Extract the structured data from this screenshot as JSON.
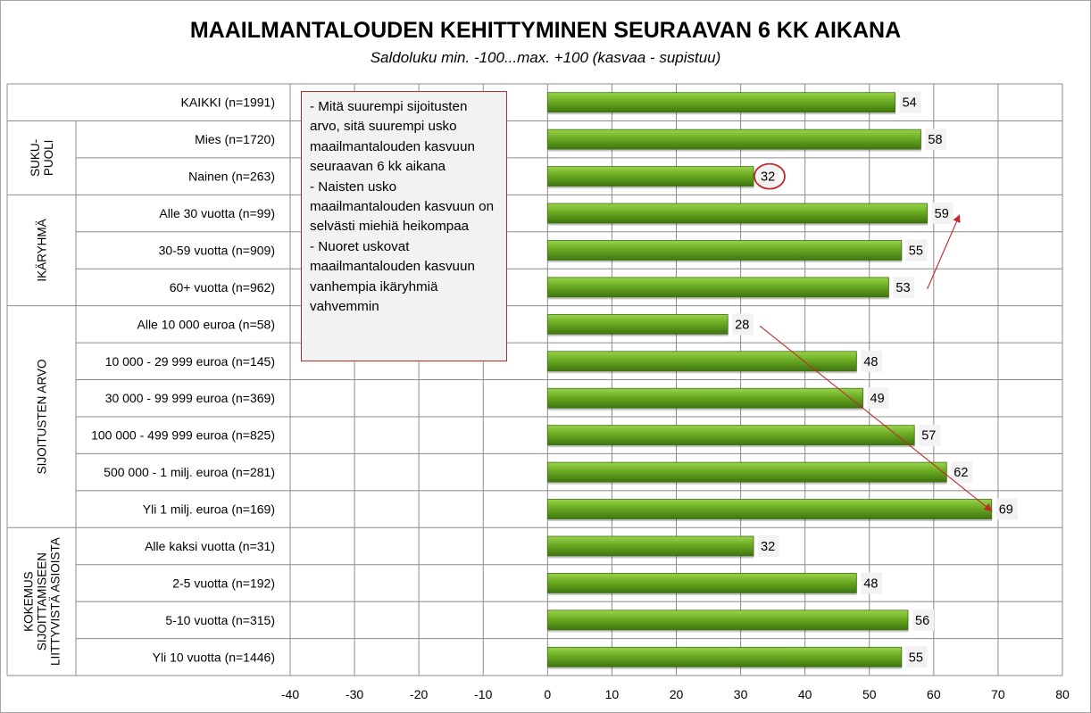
{
  "chart_data": {
    "type": "bar",
    "orientation": "horizontal",
    "title": "MAAILMANTALOUDEN KEHITTYMINEN SEURAAVAN 6 KK AIKANA",
    "subtitle": "Saldoluku min. -100...max. +100 (kasvaa - supistuu)",
    "xlabel": "",
    "ylabel": "",
    "xlim": [
      -40,
      80
    ],
    "xticks": [
      -40,
      -30,
      -20,
      -10,
      0,
      10,
      20,
      30,
      40,
      50,
      60,
      70,
      80
    ],
    "grid": true,
    "bar_color": "#66a31f",
    "categories": [
      "KAIKKI (n=1991)",
      "Mies (n=1720)",
      "Nainen (n=263)",
      "Alle 30 vuotta (n=99)",
      "30-59 vuotta (n=909)",
      "60+ vuotta (n=962)",
      "Alle 10 000 euroa (n=58)",
      "10 000 - 29 999 euroa (n=145)",
      "30 000 - 99 999 euroa (n=369)",
      "100 000 - 499 999 euroa (n=825)",
      "500 000 - 1 milj. euroa (n=281)",
      "Yli 1 milj. euroa (n=169)",
      "Alle kaksi vuotta (n=31)",
      "2-5 vuotta (n=192)",
      "5-10 vuotta (n=315)",
      "Yli 10 vuotta (n=1446)"
    ],
    "values": [
      54,
      58,
      32,
      59,
      55,
      53,
      28,
      48,
      49,
      57,
      62,
      69,
      32,
      48,
      56,
      55
    ],
    "groups": [
      {
        "label": [
          "SUKU-",
          "PUOLI"
        ],
        "start": 1,
        "end": 2
      },
      {
        "label": [
          "IKÄRYHMÄ"
        ],
        "start": 3,
        "end": 5
      },
      {
        "label": [
          "SIJOITUSTEN ARVO"
        ],
        "start": 6,
        "end": 11
      },
      {
        "label": [
          "KOKEMUS",
          "SIJOITTAMISEEN",
          "LIITTYVISTÄ ASIOISTA"
        ],
        "start": 12,
        "end": 15
      }
    ],
    "highlighted_index": 2,
    "annotation_arrows": [
      {
        "from": {
          "category_index": 5,
          "value": 59
        },
        "to": {
          "category_index": 3,
          "value": 64
        }
      },
      {
        "from": {
          "category_index": 6,
          "value": 33
        },
        "to": {
          "category_index": 11,
          "value": 69
        }
      }
    ],
    "note_lines": [
      "- Mitä suurempi sijoitusten arvo, sitä suurempi usko maailmantalouden kasvuun seuraavan 6 kk aikana",
      "- Naisten usko maailmantalouden kasvuun on selvästi miehiä heikompaa",
      "- Nuoret uskovat maailmantalouden kasvuun vanhempia ikäryhmiä vahvemmin"
    ]
  },
  "colors": {
    "accent": "#c0292b",
    "grid": "#8c8c8c",
    "label_bg": "#f2f2f2"
  }
}
